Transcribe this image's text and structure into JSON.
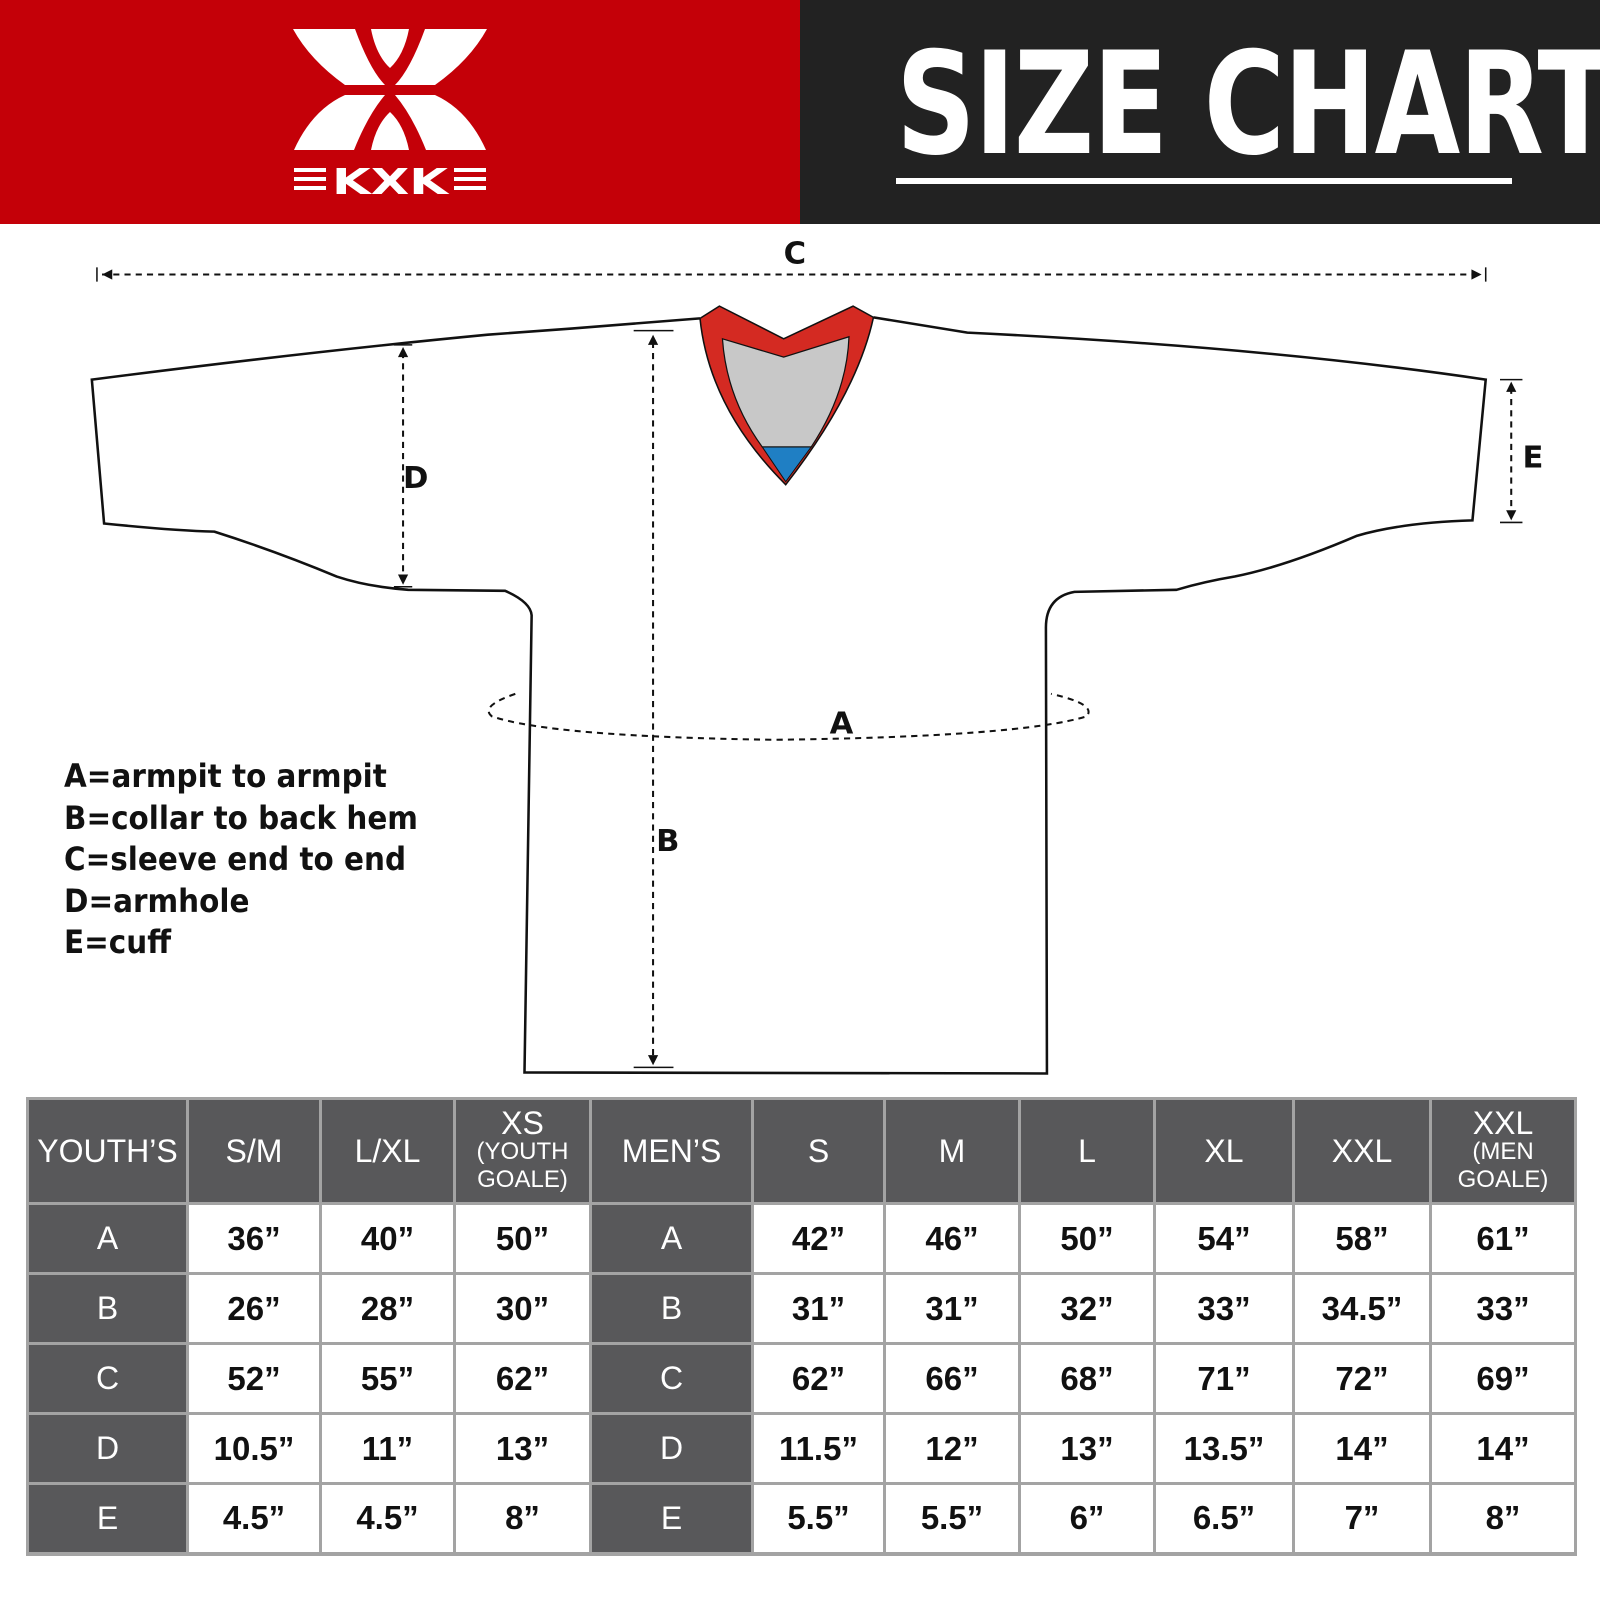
{
  "brand": {
    "logo_text": "KXK",
    "colors": {
      "red": "#c40008",
      "dark": "#222222"
    }
  },
  "header": {
    "title": "SIZE CHART"
  },
  "diagram": {
    "labels": {
      "a": "A",
      "b": "B",
      "c": "C",
      "d": "D",
      "e": "E"
    },
    "colors": {
      "collar": "#d42a22",
      "insert": "#c8c8c8",
      "tip": "#1f7fc4"
    }
  },
  "legend": [
    "A=armpit to armpit",
    "B=collar to back hem",
    "C=sleeve end to end",
    "D=armhole",
    "E=cuff"
  ],
  "table": {
    "youth_header": "YOUTH’S",
    "youth_sizes": [
      {
        "label": "S/M",
        "sub": ""
      },
      {
        "label": "L/XL",
        "sub": ""
      },
      {
        "label": "XS",
        "sub": "(YOUTH GOALE)"
      }
    ],
    "men_header": "MEN’S",
    "men_sizes": [
      {
        "label": "S",
        "sub": ""
      },
      {
        "label": "M",
        "sub": ""
      },
      {
        "label": "L",
        "sub": ""
      },
      {
        "label": "XL",
        "sub": ""
      },
      {
        "label": "XXL",
        "sub": ""
      },
      {
        "label": "XXL",
        "sub": "(MEN GOALE)"
      }
    ],
    "rows": [
      {
        "key": "A",
        "youth": [
          "36”",
          "40”",
          "50”"
        ],
        "men": [
          "42”",
          "46”",
          "50”",
          "54”",
          "58”",
          "61”"
        ]
      },
      {
        "key": "B",
        "youth": [
          "26”",
          "28”",
          "30”"
        ],
        "men": [
          "31”",
          "31”",
          "32”",
          "33”",
          "34.5”",
          "33”"
        ]
      },
      {
        "key": "C",
        "youth": [
          "52”",
          "55”",
          "62”"
        ],
        "men": [
          "62”",
          "66”",
          "68”",
          "71”",
          "72”",
          "69”"
        ]
      },
      {
        "key": "D",
        "youth": [
          "10.5”",
          "11”",
          "13”"
        ],
        "men": [
          "11.5”",
          "12”",
          "13”",
          "13.5”",
          "14”",
          "14”"
        ]
      },
      {
        "key": "E",
        "youth": [
          "4.5”",
          "4.5”",
          "8”"
        ],
        "men": [
          "5.5”",
          "5.5”",
          "6”",
          "6.5”",
          "7”",
          "8”"
        ]
      }
    ]
  }
}
